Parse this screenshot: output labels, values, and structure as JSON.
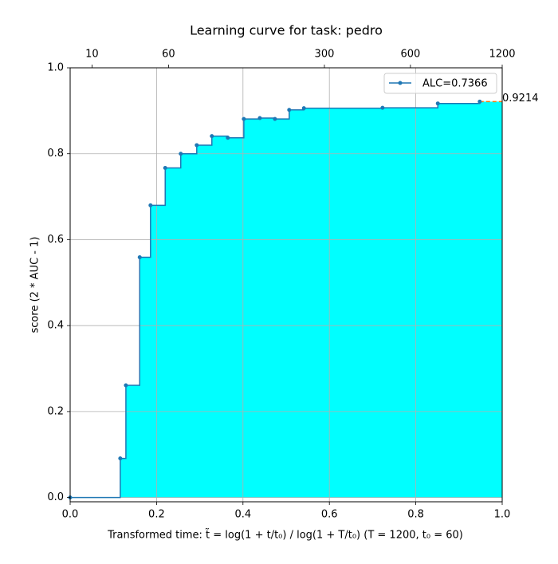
{
  "chart_data": {
    "type": "step",
    "title": "Learning curve for task: pedro",
    "x_label": "Transformed time: t̃ = log(1 + t/t₀) / log(1 + T/t₀)   (T = 1200,  t₀ = 60)",
    "y_label": "score (2 * AUC - 1)",
    "xlim": [
      0,
      1
    ],
    "ylim": [
      -0.01,
      1.0
    ],
    "xticks": [
      {
        "value": 0,
        "label": "0.0"
      },
      {
        "value": 0.2,
        "label": "0.2"
      },
      {
        "value": 0.4,
        "label": "0.4"
      },
      {
        "value": 0.6,
        "label": "0.6"
      },
      {
        "value": 0.8,
        "label": "0.8"
      },
      {
        "value": 1,
        "label": "1.0"
      }
    ],
    "yticks": [
      {
        "value": 0,
        "label": "0.0"
      },
      {
        "value": 0.2,
        "label": "0.2"
      },
      {
        "value": 0.4,
        "label": "0.4"
      },
      {
        "value": 0.6,
        "label": "0.6"
      },
      {
        "value": 0.8,
        "label": "0.8"
      },
      {
        "value": 1,
        "label": "1.0"
      }
    ],
    "x2ticks": [
      {
        "value": 0.0506,
        "label": "10"
      },
      {
        "value": 0.2277,
        "label": "60"
      },
      {
        "value": 0.5885,
        "label": "300"
      },
      {
        "value": 0.7876,
        "label": "600"
      },
      {
        "value": 1,
        "label": "1200"
      }
    ],
    "grid": true,
    "legend": "upper right",
    "fill_color": "#00ffff",
    "series": [
      {
        "name": "ALC=0.7366",
        "color": "#1f77b4",
        "x": [
          0,
          0.116,
          0.129,
          0.161,
          0.186,
          0.22,
          0.256,
          0.293,
          0.328,
          0.365,
          0.402,
          0.439,
          0.474,
          0.507,
          0.541,
          0.723,
          0.851,
          0.948
        ],
        "values": [
          0,
          0.091,
          0.261,
          0.559,
          0.68,
          0.767,
          0.8,
          0.82,
          0.841,
          0.837,
          0.881,
          0.883,
          0.881,
          0.902,
          0.906,
          0.907,
          0.917,
          0.9214
        ]
      }
    ],
    "annotation": {
      "text": "0.9214",
      "y": 0.9214,
      "color": "#ff7f0e"
    }
  }
}
